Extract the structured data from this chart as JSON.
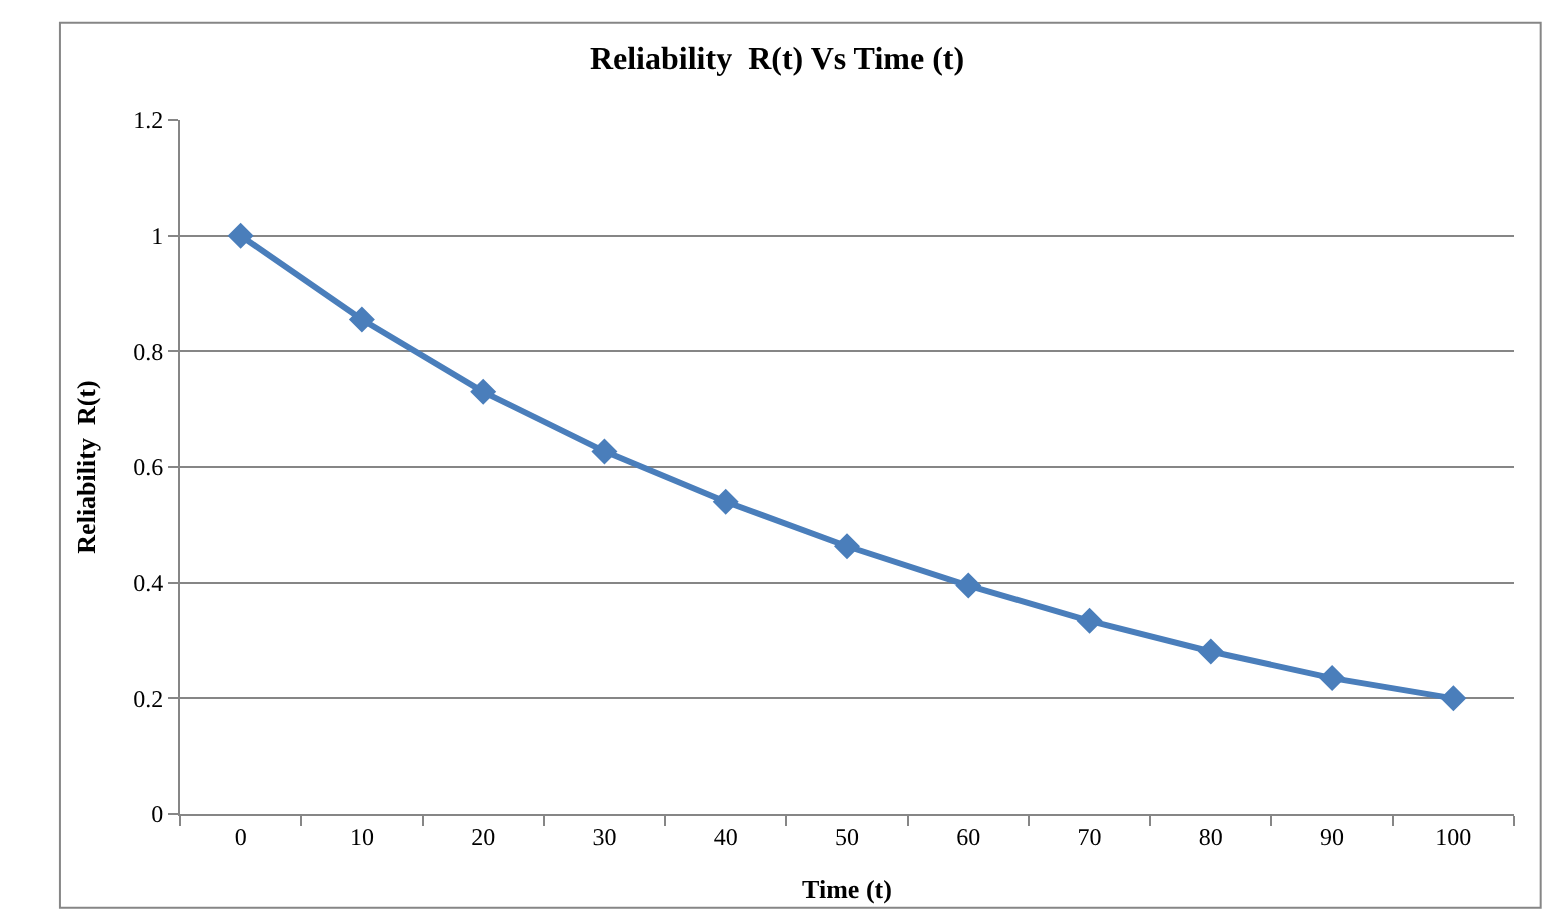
{
  "chart_data": {
    "type": "line",
    "title": "Reliability  R(t) Vs Time (t)",
    "xlabel": "Time (t)",
    "ylabel": "Reliability  R(t)",
    "categories": [
      "0",
      "10",
      "20",
      "30",
      "40",
      "50",
      "60",
      "70",
      "80",
      "90",
      "100"
    ],
    "series": [
      {
        "color": "#4a7ebb",
        "values": [
          1.0,
          0.855,
          0.73,
          0.627,
          0.54,
          0.463,
          0.395,
          0.334,
          0.281,
          0.235,
          0.2
        ]
      }
    ],
    "ylim": [
      0,
      1.2
    ],
    "yticks": [
      0,
      0.2,
      0.4,
      0.6,
      0.8,
      1,
      1.2
    ],
    "grid": "y",
    "marker": "diamond",
    "line_style": "solid"
  }
}
